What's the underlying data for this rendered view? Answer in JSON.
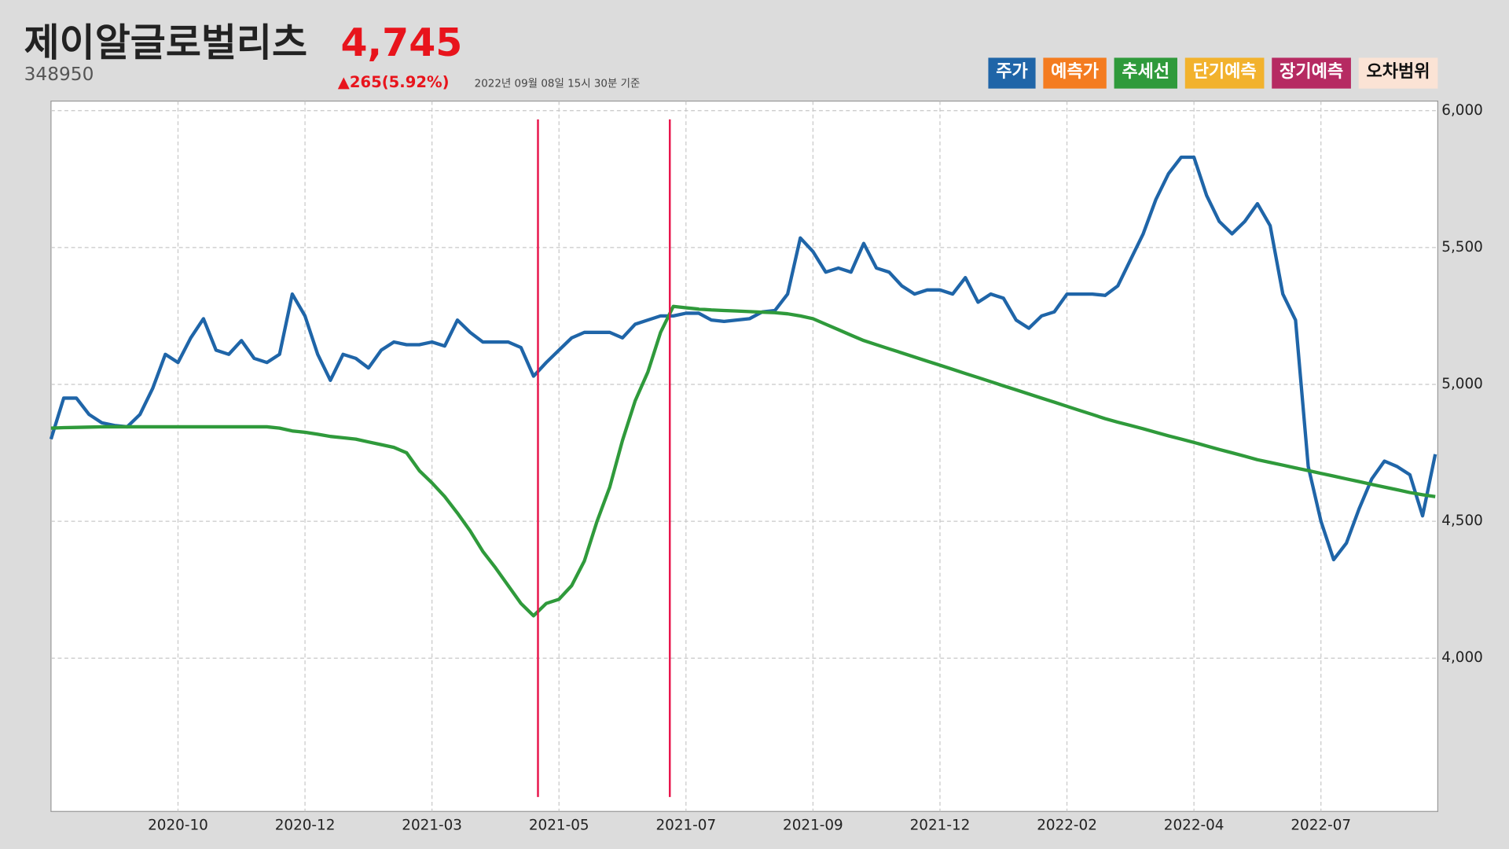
{
  "header": {
    "title": "제이알글로벌리츠",
    "price": "4,745",
    "code": "348950",
    "change": "▲265(5.92%)",
    "timestamp": "2022년 09월 08일 15시 30분 기준"
  },
  "legend": [
    {
      "label": "주가",
      "color": "#1f65a8"
    },
    {
      "label": "예측가",
      "color": "#f47c20"
    },
    {
      "label": "추세선",
      "color": "#2f9a3b"
    },
    {
      "label": "단기예측",
      "color": "#f2b22d"
    },
    {
      "label": "장기예측",
      "color": "#b62a62"
    },
    {
      "label": "오차범위",
      "color": "#fbe3d5"
    }
  ],
  "chart_data": {
    "type": "line",
    "categories": [
      null,
      null,
      null,
      null,
      null,
      null,
      null,
      null,
      null,
      null,
      "2020-10",
      null,
      null,
      null,
      null,
      null,
      null,
      null,
      null,
      null,
      "2020-12",
      null,
      null,
      null,
      null,
      null,
      null,
      null,
      null,
      null,
      "2021-03",
      null,
      null,
      null,
      null,
      null,
      null,
      null,
      null,
      null,
      "2021-05",
      null,
      null,
      null,
      null,
      null,
      null,
      null,
      null,
      null,
      "2021-07",
      null,
      null,
      null,
      null,
      null,
      null,
      null,
      null,
      null,
      "2021-09",
      null,
      null,
      null,
      null,
      null,
      null,
      null,
      null,
      null,
      "2021-12",
      null,
      null,
      null,
      null,
      null,
      null,
      null,
      null,
      null,
      "2022-02",
      null,
      null,
      null,
      null,
      null,
      null,
      null,
      null,
      null,
      "2022-04",
      null,
      null,
      null,
      null,
      null,
      null,
      null,
      null,
      null,
      "2022-07",
      null,
      null,
      null,
      null,
      null,
      null,
      null,
      null,
      null
    ],
    "series": [
      {
        "color": "#1f65a8",
        "values": [
          4800,
          4950,
          4950,
          4890,
          4860,
          4850,
          4845,
          4890,
          4985,
          5110,
          5080,
          5170,
          5240,
          5125,
          5110,
          5160,
          5095,
          5080,
          5110,
          5330,
          5250,
          5110,
          5015,
          5110,
          5095,
          5060,
          5125,
          5155,
          5145,
          5145,
          5155,
          5140,
          5235,
          5190,
          5155,
          5155,
          5155,
          5135,
          5030,
          5080,
          5125,
          5170,
          5190,
          5190,
          5190,
          5170,
          5220,
          5235,
          5250,
          5250,
          5260,
          5260,
          5235,
          5230,
          5235,
          5240,
          5265,
          5270,
          5330,
          5535,
          5485,
          5410,
          5425,
          5410,
          5515,
          5425,
          5410,
          5360,
          5330,
          5345,
          5345,
          5330,
          5390,
          5300,
          5330,
          5315,
          5235,
          5205,
          5250,
          5265,
          5330,
          5330,
          5330,
          5325,
          5360,
          5455,
          5550,
          5675,
          5770,
          5830,
          5830,
          5690,
          5595,
          5550,
          5595,
          5660,
          5580,
          5330,
          5235,
          4700,
          4500,
          4360,
          4420,
          4545,
          4655,
          4720,
          4700,
          4670,
          4520,
          4745
        ]
      },
      {
        "color": "#2f9a3b",
        "values": [
          4840,
          4842,
          4843,
          4844,
          4845,
          4845,
          4845,
          4845,
          4845,
          4845,
          4845,
          4845,
          4845,
          4845,
          4845,
          4845,
          4845,
          4845,
          4840,
          4830,
          4825,
          4818,
          4810,
          4805,
          4800,
          4790,
          4780,
          4770,
          4750,
          4685,
          4640,
          4590,
          4530,
          4465,
          4390,
          4330,
          4265,
          4200,
          4155,
          4200,
          4215,
          4265,
          4355,
          4500,
          4625,
          4795,
          4940,
          5045,
          5190,
          5285,
          5280,
          5275,
          5272,
          5270,
          5268,
          5266,
          5264,
          5262,
          5258,
          5250,
          5240,
          5220,
          5200,
          5180,
          5160,
          5145,
          5130,
          5115,
          5100,
          5085,
          5070,
          5055,
          5040,
          5025,
          5010,
          4995,
          4980,
          4965,
          4950,
          4935,
          4920,
          4905,
          4890,
          4875,
          4862,
          4850,
          4838,
          4825,
          4812,
          4800,
          4788,
          4775,
          4762,
          4750,
          4738,
          4725,
          4715,
          4705,
          4695,
          4685,
          4675,
          4665,
          4655,
          4645,
          4635,
          4625,
          4615,
          4605,
          4597,
          4590
        ]
      }
    ],
    "ylim": [
      3440,
      6035
    ],
    "yticks": [
      {
        "value": 4000,
        "label": "4,000"
      },
      {
        "value": 4500,
        "label": "4,500"
      },
      {
        "value": 5000,
        "label": "5,000"
      },
      {
        "value": 5500,
        "label": "5,500"
      },
      {
        "value": 6000,
        "label": "6,000"
      }
    ],
    "grid": true
  }
}
